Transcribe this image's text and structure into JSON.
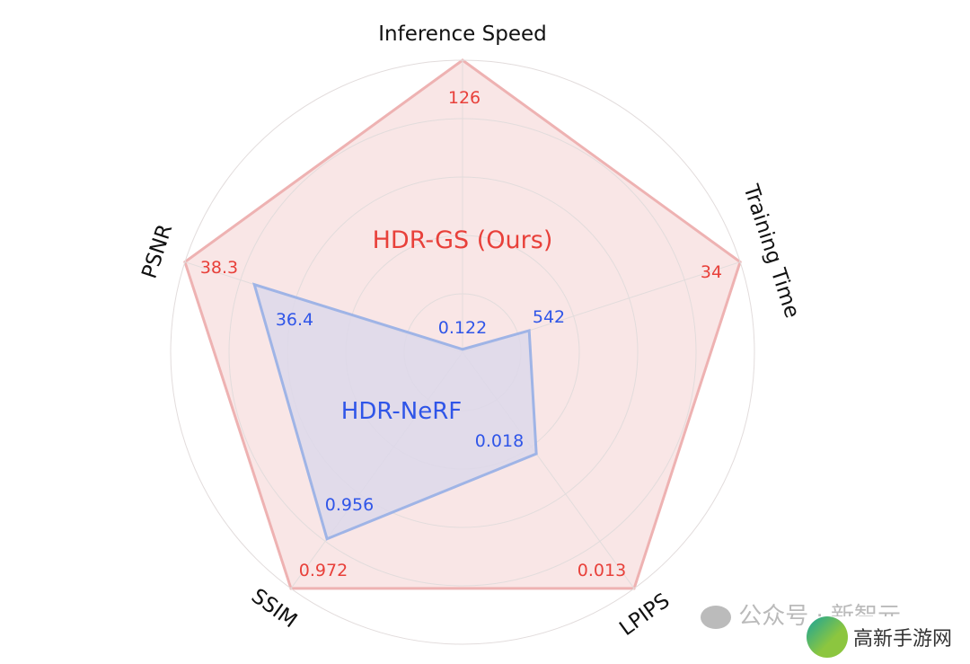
{
  "chart_data": {
    "type": "radar",
    "axes": [
      "Inference Speed",
      "Training Time",
      "LPIPS",
      "SSIM",
      "PSNR"
    ],
    "grid": true,
    "series": [
      {
        "name": "HDR-GS (Ours)",
        "color": "#e8403a",
        "fill": "#f9e6e6",
        "stroke": "#eeb2b2",
        "values": [
          "126",
          "34",
          "0.013",
          "0.972",
          "38.3"
        ]
      },
      {
        "name": "HDR-NeRF",
        "color": "#2f55e8",
        "fill": "#ddd8ea",
        "stroke": "#9fb4e6",
        "values": [
          "0.122",
          "542",
          "0.018",
          "0.956",
          "36.4"
        ]
      }
    ]
  },
  "watermark": {
    "text": "公众号 · 新智元",
    "logo_text": "高新手游网"
  }
}
